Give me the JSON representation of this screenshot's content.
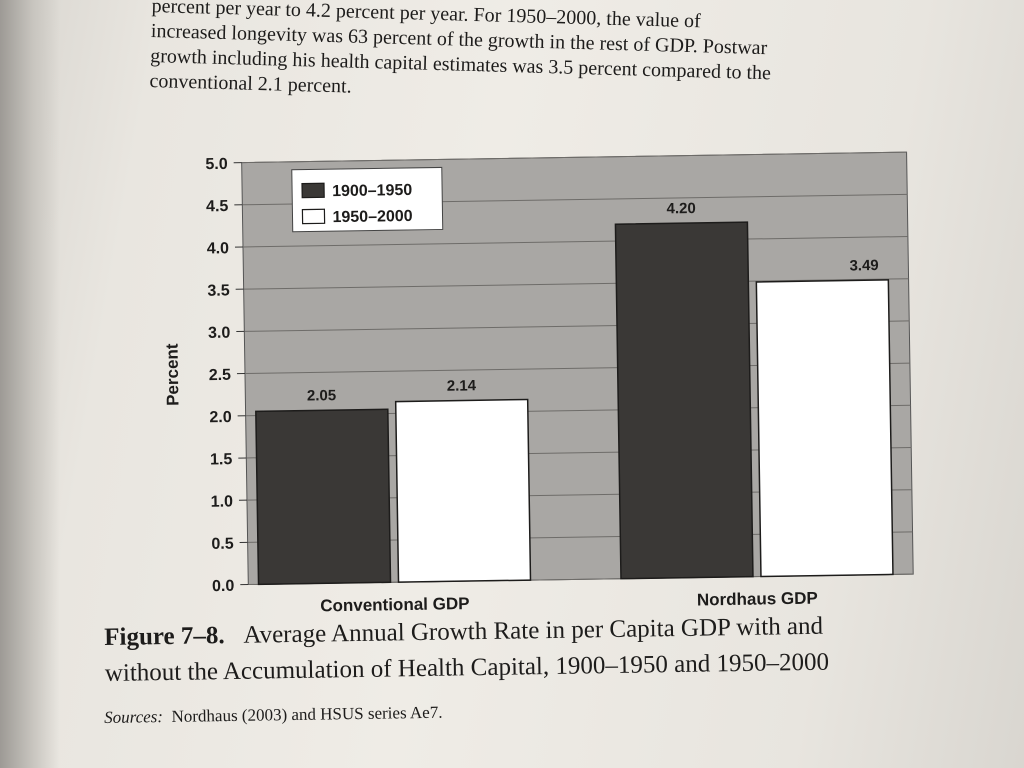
{
  "body_text": {
    "lines": [
      "percent per year to 4.2 percent per year. For 1950–2000, the value of",
      "increased longevity was 63 percent of the growth in the rest of GDP. Postwar",
      "growth including his health capital estimates was 3.5 percent compared to the",
      "conventional 2.1 percent."
    ]
  },
  "chart_data": {
    "type": "bar",
    "categories": [
      "Conventional GDP",
      "Nordhaus GDP"
    ],
    "series": [
      {
        "name": "1900–1950",
        "values": [
          2.05,
          4.2
        ],
        "color": "#3a3836"
      },
      {
        "name": "1950–2000",
        "values": [
          2.14,
          3.49
        ],
        "color": "#ffffff"
      }
    ],
    "data_labels": [
      [
        "2.05",
        "4.20"
      ],
      [
        "2.14",
        "3.49"
      ]
    ],
    "ylabel": "Percent",
    "xlabel": "",
    "ylim": [
      0,
      5.0
    ],
    "yticks": [
      "0.0",
      "0.5",
      "1.0",
      "1.5",
      "2.0",
      "2.5",
      "3.0",
      "3.5",
      "4.0",
      "4.5",
      "5.0"
    ],
    "grid": true,
    "legend_position": "top-left",
    "plot_background": "#a9a7a4"
  },
  "caption": {
    "figure_label": "Figure 7–8.",
    "line1": "Average Annual Growth Rate in per Capita GDP with and",
    "line2": "without the Accumulation of Health Capital, 1900–1950 and 1950–2000"
  },
  "sources": {
    "label": "Sources:",
    "text": "Nordhaus (2003) and HSUS series Ae7."
  }
}
